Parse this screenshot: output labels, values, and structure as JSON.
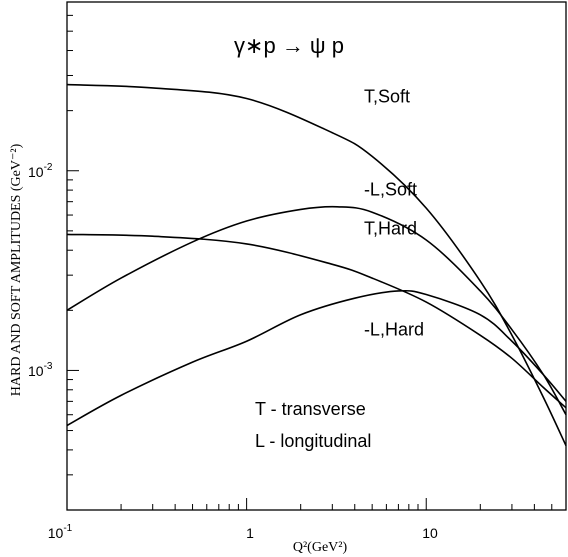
{
  "chart_data": {
    "type": "line",
    "title": "γ∗p → ψ p",
    "xlabel": "Q²(GeV²)",
    "ylabel": "HARD AND SOFT AMPLITUDES (GeV⁻²)",
    "xscale": "log",
    "yscale": "log",
    "xlim": [
      0.1,
      60
    ],
    "ylim": [
      0.0002,
      0.07
    ],
    "grid": false,
    "x_ticks": [
      {
        "value": 0.1,
        "base": "10",
        "exp": "-1"
      },
      {
        "value": 1,
        "base": "1",
        "exp": ""
      },
      {
        "value": 10,
        "base": "10",
        "exp": ""
      }
    ],
    "y_ticks": [
      {
        "value": 0.01,
        "base": "10",
        "exp": "-2"
      },
      {
        "value": 0.001,
        "base": "10",
        "exp": "-3"
      }
    ],
    "legend_notes": [
      "T - transverse",
      "L - longitudinal"
    ],
    "series": [
      {
        "name": "T,Soft",
        "label_at": [
          4.5,
          0.022
        ],
        "x": [
          0.1,
          0.3,
          1,
          3,
          5,
          10,
          20,
          30,
          45,
          60
        ],
        "y": [
          0.027,
          0.026,
          0.023,
          0.0155,
          0.0118,
          0.0065,
          0.0028,
          0.0015,
          0.00073,
          0.00042
        ]
      },
      {
        "name": "-L,Soft",
        "label_at": [
          4.5,
          0.0075
        ],
        "x": [
          0.1,
          0.2,
          0.5,
          1,
          2,
          3.2,
          5,
          10,
          20,
          30,
          45,
          60
        ],
        "y": [
          0.002,
          0.0029,
          0.0044,
          0.0056,
          0.0064,
          0.0066,
          0.0062,
          0.0045,
          0.0025,
          0.0016,
          0.00095,
          0.0006
        ]
      },
      {
        "name": "T,Hard",
        "label_at": [
          4.5,
          0.0048
        ],
        "x": [
          0.1,
          0.3,
          1,
          3,
          5,
          10,
          20,
          30,
          45,
          60
        ],
        "y": [
          0.0048,
          0.0047,
          0.0043,
          0.0034,
          0.0029,
          0.0022,
          0.0015,
          0.00115,
          0.00082,
          0.00065
        ]
      },
      {
        "name": "-L,Hard",
        "label_at": [
          4.5,
          0.0015
        ],
        "x": [
          0.1,
          0.2,
          0.5,
          1,
          2,
          4,
          7,
          10,
          20,
          30,
          45,
          60
        ],
        "y": [
          0.00053,
          0.00075,
          0.0011,
          0.0014,
          0.0019,
          0.0023,
          0.0025,
          0.0024,
          0.0019,
          0.0014,
          0.00095,
          0.0007
        ]
      }
    ]
  }
}
